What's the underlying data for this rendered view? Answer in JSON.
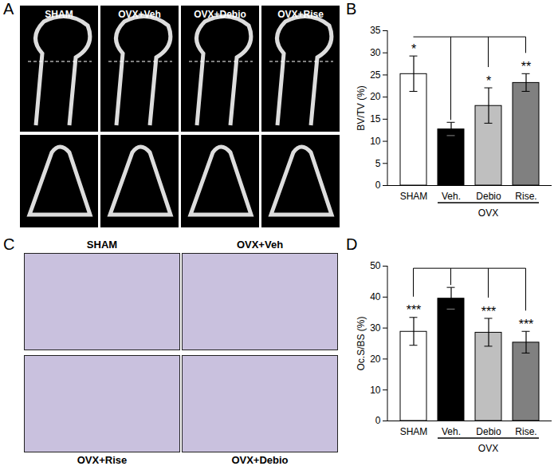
{
  "image_panels": [
    {
      "panel": "A",
      "labels": [
        "SHAM",
        "OVX+Veh",
        "OVX+Debio",
        "OVX+Rise"
      ]
    },
    {
      "panel": "C",
      "labels": [
        "SHAM",
        "OVX+Veh",
        "OVX+Rise",
        "OVX+Debio"
      ]
    }
  ],
  "chart_data": [
    {
      "panel": "B",
      "type": "bar",
      "y_label": "BV/TV (%)",
      "categories": [
        "SHAM",
        "Veh.",
        "Debio",
        "Rise."
      ],
      "values": [
        25.2,
        12.7,
        18,
        23.2
      ],
      "errors": [
        4,
        1.5,
        4,
        2
      ],
      "colors": [
        "#ffffff",
        "#000000",
        "#bfbfbf",
        "#808080"
      ],
      "significance": [
        "*",
        null,
        "*",
        "**"
      ],
      "group_label": {
        "label": "OVX",
        "categories": [
          "Veh.",
          "Debio",
          "Rise."
        ]
      },
      "ylim": [
        0,
        35
      ],
      "yticks": [
        0,
        5,
        10,
        15,
        20,
        25,
        30,
        35
      ]
    },
    {
      "panel": "D",
      "type": "bar",
      "y_label": "Oc.S/BS (%)",
      "categories": [
        "SHAM",
        "Veh.",
        "Debio",
        "Rise."
      ],
      "values": [
        28.8,
        39.5,
        28.5,
        25.3
      ],
      "errors": [
        4.5,
        3.5,
        4.5,
        3.5
      ],
      "colors": [
        "#ffffff",
        "#000000",
        "#bfbfbf",
        "#808080"
      ],
      "significance": [
        "***",
        null,
        "***",
        "***"
      ],
      "group_label": {
        "label": "OVX",
        "categories": [
          "Veh.",
          "Debio",
          "Rise."
        ]
      },
      "ylim": [
        0,
        50
      ],
      "yticks": [
        0,
        10,
        20,
        30,
        40,
        50
      ]
    }
  ]
}
